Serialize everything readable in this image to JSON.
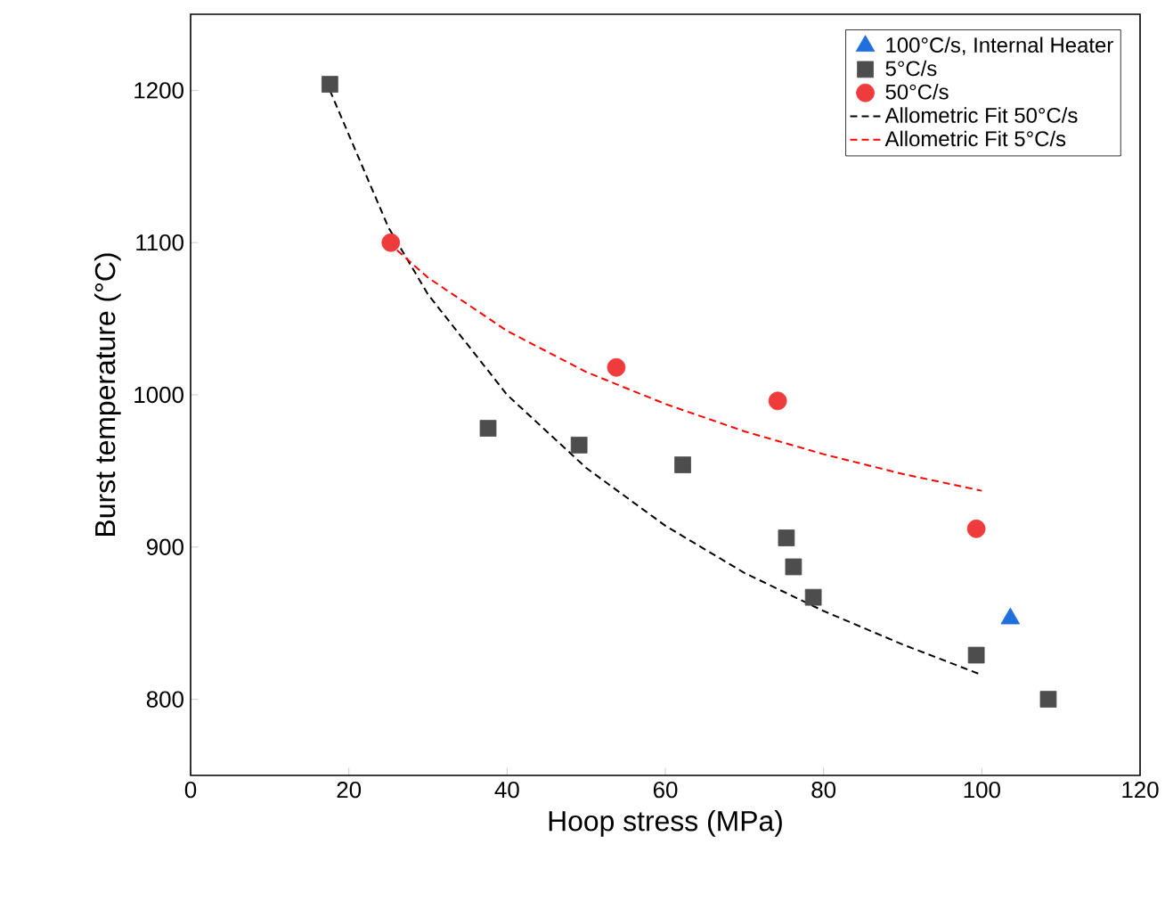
{
  "chart_data": {
    "type": "scatter",
    "xlabel": "Hoop stress (MPa)",
    "ylabel": "Burst temperature (°C)",
    "xlim": [
      0,
      120
    ],
    "ylim": [
      750,
      1250
    ],
    "xticks": [
      0,
      20,
      40,
      60,
      80,
      100,
      120
    ],
    "yticks": [
      800,
      900,
      1000,
      1100,
      1200
    ],
    "grid": false,
    "legend": "top right",
    "series": [
      {
        "name": "100°C/s, Internal Heater",
        "marker": "triangle",
        "color": "#1f6fdc",
        "x": [
          103.6
        ],
        "values": [
          853
        ]
      },
      {
        "name": "5°C/s",
        "marker": "square",
        "color": "#4d4d4d",
        "x": [
          17.6,
          37.6,
          49.1,
          62.2,
          75.3,
          76.2,
          78.7,
          99.3,
          108.4
        ],
        "values": [
          1204,
          978,
          967,
          954,
          906,
          887,
          867,
          829,
          800
        ]
      },
      {
        "name": "50°C/s",
        "marker": "circle",
        "color": "#ef3b3b",
        "x": [
          25.3,
          53.8,
          74.2,
          99.3
        ],
        "values": [
          1100,
          1018,
          996,
          912
        ]
      },
      {
        "name": "Allometric Fit 50°C/s",
        "type": "line",
        "line_style": "dashed",
        "color": "#000000",
        "x": [
          17.6,
          25,
          30,
          40,
          50,
          60,
          70,
          80,
          90,
          100
        ],
        "values": [
          1200,
          1110,
          1066,
          1000,
          952,
          914,
          883,
          858,
          836,
          816
        ]
      },
      {
        "name": "Allometric Fit 5°C/s",
        "type": "line",
        "line_style": "dashed",
        "color": "#ff0000",
        "x": [
          25,
          30,
          40,
          50,
          60,
          70,
          80,
          90,
          100
        ],
        "values": [
          1100,
          1077,
          1042,
          1015,
          994,
          976,
          961,
          948,
          937
        ]
      }
    ]
  }
}
